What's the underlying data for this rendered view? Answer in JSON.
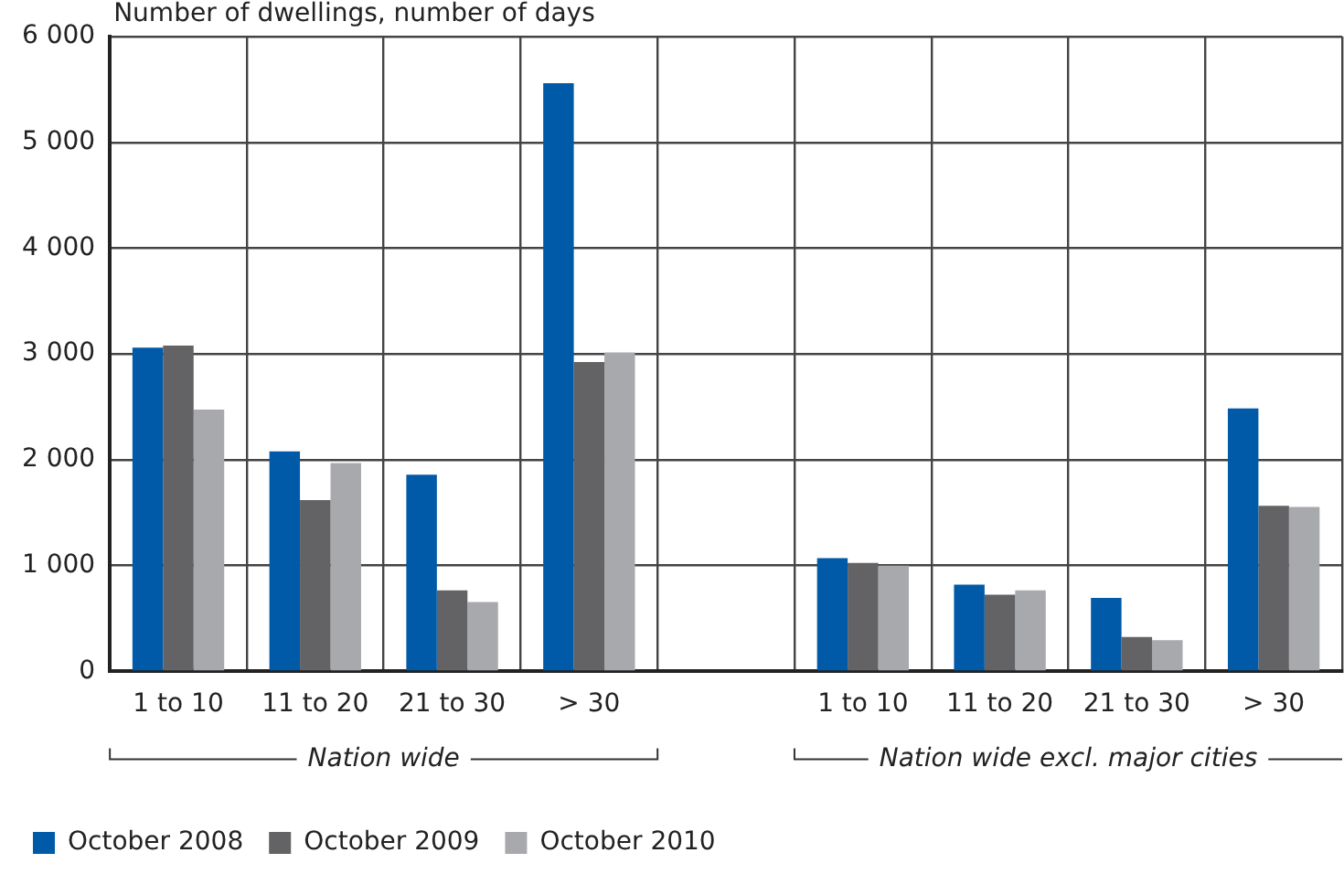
{
  "chart_data": {
    "type": "bar",
    "ylabel": "Number of dwellings, number of days",
    "categories": [
      "1 to 10",
      "11 to 20",
      "21 to 30",
      "> 30",
      null,
      "1 to 10",
      "11 to 20",
      "21 to 30",
      "> 30"
    ],
    "series": [
      {
        "name": "October 2008",
        "color": "#005aa8",
        "values": [
          3060,
          2080,
          1860,
          5560,
          null,
          1070,
          820,
          695,
          2485
        ]
      },
      {
        "name": "October 2009",
        "color": "#636365",
        "values": [
          3080,
          1620,
          765,
          2925,
          null,
          1025,
          725,
          325,
          1565
        ]
      },
      {
        "name": "October 2010",
        "color": "#a8a9ad",
        "values": [
          2475,
          1970,
          655,
          3015,
          null,
          1000,
          765,
          295,
          1555
        ]
      }
    ],
    "ylim": [
      0,
      6000
    ],
    "yticks": [
      {
        "value": 0,
        "label": "0"
      },
      {
        "value": 1000,
        "label": "1 000"
      },
      {
        "value": 2000,
        "label": "2 000"
      },
      {
        "value": 3000,
        "label": "3 000"
      },
      {
        "value": 4000,
        "label": "4 000"
      },
      {
        "value": 5000,
        "label": "5 000"
      },
      {
        "value": 6000,
        "label": "6 000"
      }
    ],
    "annotations": [
      "Nation wide",
      "Nation wide excl. major cities"
    ],
    "grid": true,
    "legend": "bottom left"
  }
}
